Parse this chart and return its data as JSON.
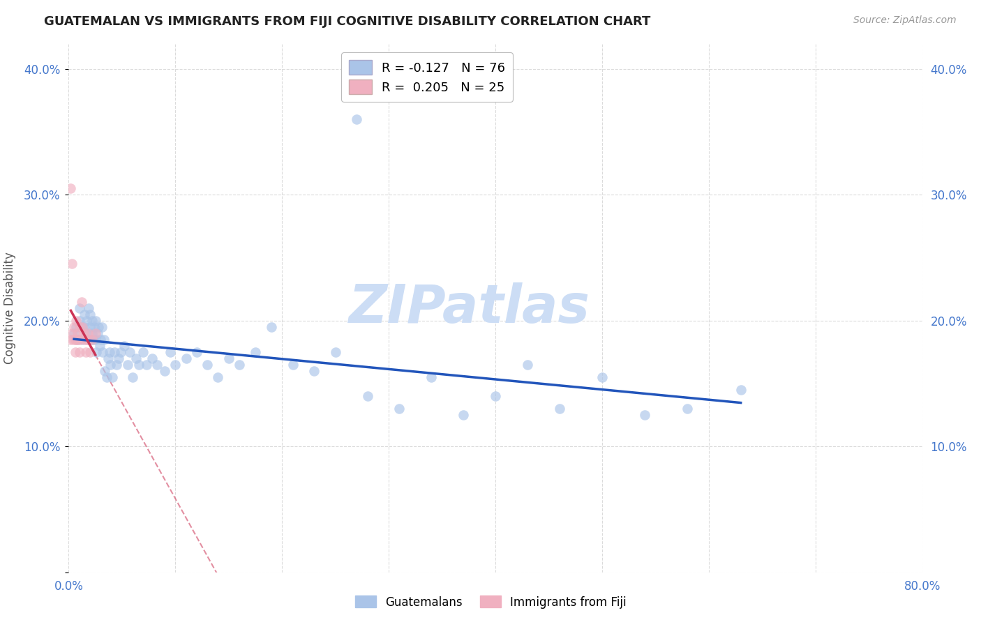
{
  "title": "GUATEMALAN VS IMMIGRANTS FROM FIJI COGNITIVE DISABILITY CORRELATION CHART",
  "source": "Source: ZipAtlas.com",
  "ylabel": "Cognitive Disability",
  "xlim": [
    0.0,
    0.8
  ],
  "ylim": [
    0.0,
    0.42
  ],
  "x_ticks": [
    0.0,
    0.1,
    0.2,
    0.3,
    0.4,
    0.5,
    0.6,
    0.7,
    0.8
  ],
  "y_ticks": [
    0.0,
    0.1,
    0.2,
    0.3,
    0.4
  ],
  "x_tick_labels": [
    "0.0%",
    "",
    "",
    "",
    "",
    "",
    "",
    "",
    "80.0%"
  ],
  "y_tick_labels_left": [
    "",
    "10.0%",
    "20.0%",
    "30.0%",
    "40.0%"
  ],
  "y_tick_labels_right": [
    "",
    "10.0%",
    "20.0%",
    "30.0%",
    "40.0%"
  ],
  "legend1_label": "R = -0.127   N = 76",
  "legend2_label": "R =  0.205   N = 25",
  "legend1_color": "#aac4e8",
  "legend2_color": "#f0b0c0",
  "trendline1_color": "#2255bb",
  "trendline2_color": "#cc3355",
  "watermark": "ZIPatlas",
  "watermark_color": "#ccddf5",
  "background_color": "#ffffff",
  "grid_color": "#d8d8d8",
  "blue_x": [
    0.005,
    0.007,
    0.008,
    0.01,
    0.01,
    0.012,
    0.013,
    0.015,
    0.015,
    0.016,
    0.017,
    0.018,
    0.019,
    0.02,
    0.02,
    0.021,
    0.022,
    0.022,
    0.023,
    0.024,
    0.025,
    0.025,
    0.026,
    0.027,
    0.028,
    0.029,
    0.03,
    0.031,
    0.032,
    0.033,
    0.034,
    0.036,
    0.037,
    0.038,
    0.039,
    0.041,
    0.043,
    0.045,
    0.047,
    0.049,
    0.052,
    0.055,
    0.057,
    0.06,
    0.063,
    0.066,
    0.07,
    0.073,
    0.078,
    0.083,
    0.09,
    0.095,
    0.1,
    0.11,
    0.12,
    0.13,
    0.14,
    0.15,
    0.16,
    0.175,
    0.19,
    0.21,
    0.23,
    0.25,
    0.28,
    0.31,
    0.34,
    0.37,
    0.4,
    0.43,
    0.46,
    0.5,
    0.54,
    0.58,
    0.63,
    0.27
  ],
  "blue_y": [
    0.19,
    0.195,
    0.185,
    0.2,
    0.21,
    0.195,
    0.185,
    0.205,
    0.195,
    0.19,
    0.2,
    0.185,
    0.21,
    0.195,
    0.205,
    0.185,
    0.2,
    0.19,
    0.185,
    0.195,
    0.2,
    0.185,
    0.175,
    0.19,
    0.195,
    0.18,
    0.185,
    0.195,
    0.175,
    0.185,
    0.16,
    0.155,
    0.17,
    0.175,
    0.165,
    0.155,
    0.175,
    0.165,
    0.17,
    0.175,
    0.18,
    0.165,
    0.175,
    0.155,
    0.17,
    0.165,
    0.175,
    0.165,
    0.17,
    0.165,
    0.16,
    0.175,
    0.165,
    0.17,
    0.175,
    0.165,
    0.155,
    0.17,
    0.165,
    0.175,
    0.195,
    0.165,
    0.16,
    0.175,
    0.14,
    0.13,
    0.155,
    0.125,
    0.14,
    0.165,
    0.13,
    0.155,
    0.125,
    0.13,
    0.145,
    0.36
  ],
  "pink_x": [
    0.002,
    0.003,
    0.004,
    0.005,
    0.006,
    0.006,
    0.007,
    0.007,
    0.008,
    0.009,
    0.01,
    0.01,
    0.011,
    0.012,
    0.013,
    0.014,
    0.015,
    0.016,
    0.017,
    0.018,
    0.019,
    0.02,
    0.022,
    0.025,
    0.003
  ],
  "pink_y": [
    0.185,
    0.19,
    0.185,
    0.195,
    0.185,
    0.175,
    0.2,
    0.185,
    0.19,
    0.185,
    0.195,
    0.175,
    0.185,
    0.215,
    0.195,
    0.19,
    0.185,
    0.175,
    0.185,
    0.19,
    0.185,
    0.175,
    0.185,
    0.19,
    0.245
  ],
  "pink_isolated_x": [
    0.002
  ],
  "pink_isolated_y": [
    0.305
  ],
  "figwidth": 14.06,
  "figheight": 8.92
}
